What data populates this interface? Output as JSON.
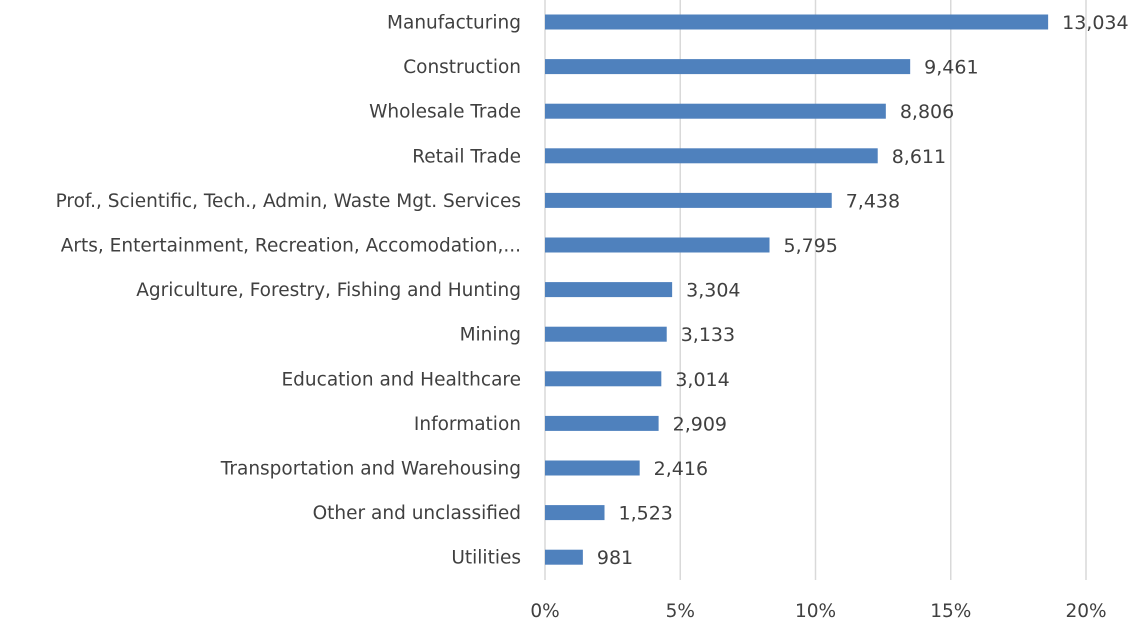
{
  "chart_data": {
    "type": "bar",
    "orientation": "horizontal",
    "categories": [
      "Manufacturing",
      "Construction",
      "Wholesale Trade",
      "Retail Trade",
      "Prof., Scientific, Tech., Admin, Waste Mgt. Services",
      "Arts, Entertainment, Recreation, Accomodation,...",
      "Agriculture, Forestry, Fishing and Hunting",
      "Mining",
      "Education and Healthcare",
      "Information",
      "Transportation and Warehousing",
      "Other and unclassified",
      "Utilities"
    ],
    "values": [
      18.6,
      13.5,
      12.6,
      12.3,
      10.6,
      8.3,
      4.7,
      4.5,
      4.3,
      4.2,
      3.5,
      2.2,
      1.4
    ],
    "data_labels": [
      "13,034",
      "9,461",
      "8,806",
      "8,611",
      "7,438",
      "5,795",
      "3,304",
      "3,133",
      "3,014",
      "2,909",
      "2,416",
      "1,523",
      "981"
    ],
    "xlim": [
      0,
      20
    ],
    "x_ticks": [
      0,
      5,
      10,
      15,
      20
    ],
    "x_tick_labels": [
      "0%",
      "5%",
      "10%",
      "15%",
      "20%"
    ],
    "grid": true,
    "bar_color": "#4F81BD",
    "grid_color": "#D9D9D9",
    "text_color": "#404040"
  }
}
